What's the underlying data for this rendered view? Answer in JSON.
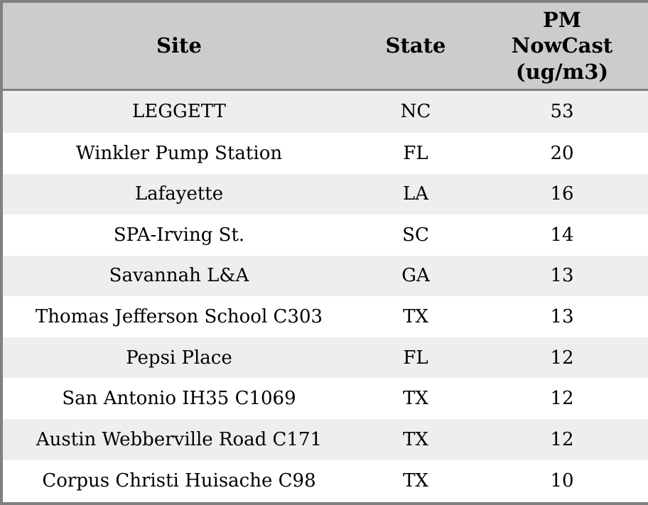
{
  "chart_data": {
    "type": "table",
    "title": "",
    "columns": [
      "Site",
      "State",
      "PM\nNowCast\n(ug/m3)"
    ],
    "rows": [
      [
        "LEGGETT",
        "NC",
        53
      ],
      [
        "Winkler Pump Station",
        "FL",
        20
      ],
      [
        "Lafayette",
        "LA",
        16
      ],
      [
        "SPA-Irving St.",
        "SC",
        14
      ],
      [
        "Savannah L&A",
        "GA",
        13
      ],
      [
        "Thomas Jefferson School C303",
        "TX",
        13
      ],
      [
        "Pepsi Place",
        "FL",
        12
      ],
      [
        "San Antonio IH35 C1069",
        "TX",
        12
      ],
      [
        "Austin Webberville Road C171",
        "TX",
        12
      ],
      [
        "Corpus Christi Huisache C98",
        "TX",
        10
      ]
    ],
    "layout": {
      "header_align": "center",
      "cell_align": "center",
      "striped": true,
      "grid": false,
      "legend": "none"
    }
  },
  "colors": {
    "header_bg": "#cccccc",
    "row_alt_bg": "#eeeeee",
    "row_bg": "#ffffff",
    "border": "#808080",
    "text": "#000000"
  }
}
